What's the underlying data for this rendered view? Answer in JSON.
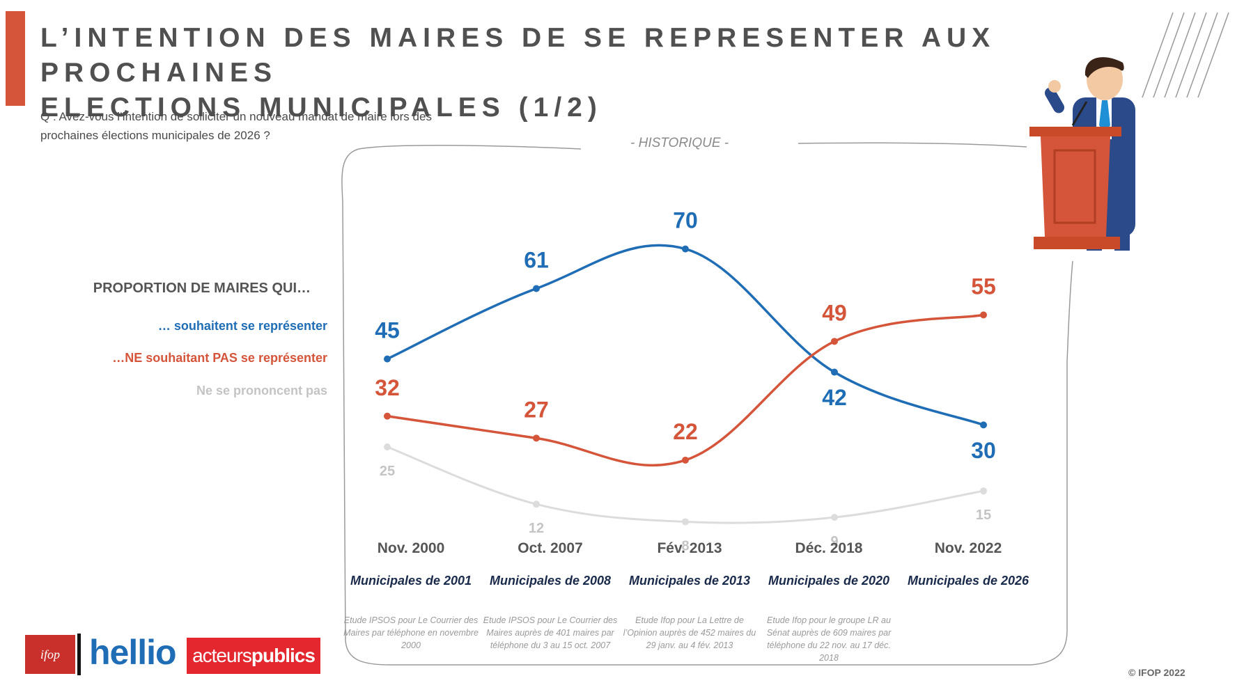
{
  "title": {
    "line1": "L’INTENTION DES MAIRES DE SE REPRESENTER AUX PROCHAINES",
    "line2": "ELECTIONS MUNICIPALES (1/2)"
  },
  "question": "Q : Avez-vous l’intention de solliciter un nouveau mandat de maire lors des prochaines élections municipales de 2026 ?",
  "historique_label": "- HISTORIQUE -",
  "legend": {
    "title": "PROPORTION DE MAIRES QUI…",
    "items": [
      {
        "label": "… souhaitent se représenter",
        "color": "#1f6db5"
      },
      {
        "label": "…NE souhaitant PAS  se représenter",
        "color": "#d4553a"
      },
      {
        "label": "Ne se prononcent pas",
        "color": "#c4c4c4"
      }
    ]
  },
  "chart_data": {
    "type": "line",
    "categories": [
      "Nov. 2000",
      "Oct. 2007",
      "Fév. 2013",
      "Déc. 2018",
      "Nov. 2022"
    ],
    "series": [
      {
        "name": "… souhaitent se représenter",
        "color": "#1f6db5",
        "values": [
          45,
          61,
          70,
          42,
          30
        ]
      },
      {
        "name": "…NE souhaitant PAS  se représenter",
        "color": "#d4553a",
        "values": [
          32,
          27,
          22,
          49,
          55
        ]
      },
      {
        "name": "Ne se prononcent pas",
        "color": "#dcdcdc",
        "values": [
          25,
          12,
          8,
          9,
          15
        ]
      }
    ],
    "ylim": [
      0,
      80
    ],
    "grid": false,
    "xlabel": "",
    "ylabel": ""
  },
  "periods": [
    {
      "date": "Nov. 2000",
      "muni": "Municipales de 2001",
      "source": "Etude IPSOS pour Le Courrier des Maires par téléphone en novembre 2000"
    },
    {
      "date": "Oct. 2007",
      "muni": "Municipales de 2008",
      "source": "Etude IPSOS pour Le Courrier des Maires auprès de 401 maires par téléphone du 3 au 15 oct. 2007"
    },
    {
      "date": "Fév. 2013",
      "muni": "Municipales de 2013",
      "source": "Etude Ifop pour La Lettre de l’Opinion auprès de 452 maires du 29 janv. au 4 fév. 2013"
    },
    {
      "date": "Déc. 2018",
      "muni": "Municipales de 2020",
      "source": "Etude Ifop pour le groupe LR au Sénat auprès de 609 maires par téléphone du 22 nov. au 17 déc. 2018"
    },
    {
      "date": "Nov. 2022",
      "muni": "Municipales de 2026",
      "source": ""
    }
  ],
  "logos": {
    "ifop": "ifop",
    "hellio": "hellio",
    "ap_light": "acteurs",
    "ap_bold": "publics"
  },
  "copyright": "© IFOP 2022",
  "colors": {
    "accent": "#d4553a",
    "blue": "#1f6db5",
    "orange": "#d4553a",
    "gray": "#c4c4c4"
  }
}
